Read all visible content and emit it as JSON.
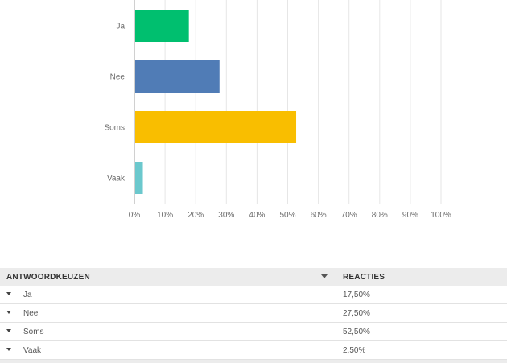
{
  "chart_data": {
    "type": "bar",
    "orientation": "horizontal",
    "categories": [
      "Ja",
      "Nee",
      "Soms",
      "Vaak"
    ],
    "values": [
      17.5,
      27.5,
      52.5,
      2.5
    ],
    "colors": [
      "#00bf6f",
      "#507cb6",
      "#f9be00",
      "#6bc8cd"
    ],
    "xlim": [
      0,
      100
    ],
    "xticks": [
      0,
      10,
      20,
      30,
      40,
      50,
      60,
      70,
      80,
      90,
      100
    ],
    "xtick_labels": [
      "0%",
      "10%",
      "20%",
      "30%",
      "40%",
      "50%",
      "60%",
      "70%",
      "80%",
      "90%",
      "100%"
    ],
    "grid": true
  },
  "table": {
    "headers": {
      "answer": "ANTWOORDKEUZEN",
      "responses": "REACTIES"
    },
    "sort_icon": "chevron-down-icon",
    "rows": [
      {
        "label": "Ja",
        "value": "17,50%"
      },
      {
        "label": "Nee",
        "value": "27,50%"
      },
      {
        "label": "Soms",
        "value": "52,50%"
      },
      {
        "label": "Vaak",
        "value": "2,50%"
      }
    ]
  }
}
